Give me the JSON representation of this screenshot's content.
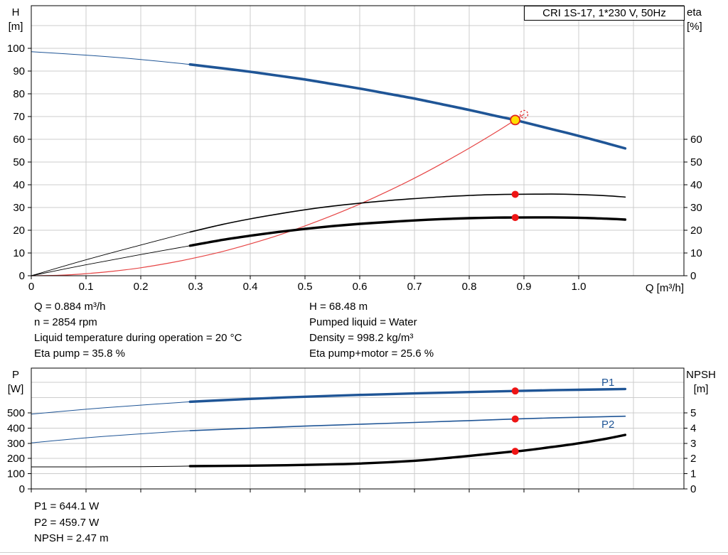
{
  "title_box": "CRI 1S-17, 1*230 V, 50Hz",
  "axes": {
    "top_left_line1": "H",
    "top_left_line2": "[m]",
    "top_right_line1": "eta",
    "top_right_line2": "[%]",
    "x_label": "Q [m³/h]",
    "bottom_left_line1": "P",
    "bottom_left_line2": "[W]",
    "bottom_right_line1": "NPSH",
    "bottom_right_line2": "[m]"
  },
  "series_labels": {
    "p1": "P1",
    "p2": "P2"
  },
  "annotations": {
    "top_left": [
      "Q = 0.884 m³/h",
      "n = 2854 rpm",
      "Liquid temperature during operation = 20 °C",
      "Eta pump = 35.8 %"
    ],
    "top_right": [
      "H = 68.48 m",
      "Pumped liquid = Water",
      "Density = 998.2 kg/m³",
      "Eta pump+motor = 25.6 %"
    ],
    "bottom": [
      "P1 = 644.1 W",
      "P2 = 459.7 W",
      "NPSH = 2.47 m"
    ]
  },
  "colors": {
    "curve_blue": "#1f5596",
    "curve_black": "#000000",
    "curve_red": "#e64545",
    "marker_red": "#ee1515",
    "duty_yellow": "#ffdf00",
    "grid": "#cccccc"
  },
  "chart_data": [
    {
      "type": "line",
      "title": "CRI 1S-17, 1*230 V, 50Hz",
      "xlabel": "Q [m³/h]",
      "ylabel_left": "H [m]",
      "ylabel_right": "eta [%]",
      "xlim": [
        0,
        1.19
      ],
      "ylim_left": [
        0,
        118
      ],
      "ylim_right": [
        0,
        118
      ],
      "x_tick_values": [
        0,
        0.1,
        0.2,
        0.3,
        0.4,
        0.5,
        0.6,
        0.7,
        0.8,
        0.9,
        1.0
      ],
      "x_tick_labels": [
        "0",
        "0.1",
        "0.2",
        "0.3",
        "0.4",
        "0.5",
        "0.6",
        "0.7",
        "0.8",
        "0.9",
        "1.0"
      ],
      "y_ticks_left": [
        0,
        10,
        20,
        30,
        40,
        50,
        60,
        70,
        80,
        90,
        100
      ],
      "y_ticks_right": [
        0,
        10,
        20,
        30,
        40,
        50,
        60
      ],
      "grid_x": [
        0.1,
        0.2,
        0.3,
        0.4,
        0.5,
        0.6,
        0.7,
        0.8,
        0.9,
        1.0,
        1.1
      ],
      "grid_y": [
        10,
        20,
        30,
        40,
        50,
        60,
        70,
        80,
        90,
        100,
        110
      ],
      "show_x_labels": true,
      "series": [
        {
          "name": "h-curve-extrapolated",
          "axis": "left",
          "color": "#1f5596",
          "width": 1,
          "points": [
            [
              0,
              98.5
            ],
            [
              0.1,
              97.0
            ],
            [
              0.2,
              95.1
            ],
            [
              0.29,
              92.9
            ]
          ]
        },
        {
          "name": "h-curve",
          "axis": "left",
          "color": "#1f5596",
          "width": 3.6,
          "points": [
            [
              0.29,
              92.9
            ],
            [
              0.35,
              91.2
            ],
            [
              0.4,
              89.7
            ],
            [
              0.45,
              88.0
            ],
            [
              0.5,
              86.3
            ],
            [
              0.55,
              84.3
            ],
            [
              0.6,
              82.3
            ],
            [
              0.65,
              80.1
            ],
            [
              0.7,
              77.9
            ],
            [
              0.75,
              75.4
            ],
            [
              0.8,
              72.9
            ],
            [
              0.85,
              70.2
            ],
            [
              0.884,
              68.5
            ],
            [
              0.9,
              67.5
            ],
            [
              0.95,
              64.5
            ],
            [
              1.0,
              61.5
            ],
            [
              1.05,
              58.3
            ],
            [
              1.085,
              56.0
            ]
          ]
        },
        {
          "name": "system-curve",
          "axis": "left",
          "color": "#e64545",
          "width": 1.2,
          "points": [
            [
              0,
              0
            ],
            [
              0.05,
              0.2
            ],
            [
              0.1,
              0.9
            ],
            [
              0.15,
              2.0
            ],
            [
              0.2,
              3.5
            ],
            [
              0.25,
              5.5
            ],
            [
              0.3,
              7.9
            ],
            [
              0.35,
              10.7
            ],
            [
              0.4,
              14.0
            ],
            [
              0.45,
              17.7
            ],
            [
              0.5,
              21.9
            ],
            [
              0.55,
              26.5
            ],
            [
              0.6,
              31.5
            ],
            [
              0.65,
              37.0
            ],
            [
              0.7,
              42.9
            ],
            [
              0.75,
              49.3
            ],
            [
              0.8,
              56.1
            ],
            [
              0.85,
              63.3
            ],
            [
              0.884,
              68.5
            ],
            [
              0.9,
              71.0
            ]
          ]
        },
        {
          "name": "eta-pump-extrapolated",
          "axis": "right",
          "color": "#000000",
          "width": 0.9,
          "points": [
            [
              0,
              0
            ],
            [
              0.1,
              7.0
            ],
            [
              0.2,
              13.5
            ],
            [
              0.29,
              19.2
            ]
          ]
        },
        {
          "name": "eta-pump",
          "axis": "right",
          "color": "#000000",
          "width": 1.6,
          "points": [
            [
              0.29,
              19.2
            ],
            [
              0.35,
              22.6
            ],
            [
              0.4,
              25.0
            ],
            [
              0.45,
              27.1
            ],
            [
              0.5,
              29.0
            ],
            [
              0.55,
              30.6
            ],
            [
              0.6,
              31.9
            ],
            [
              0.65,
              33.0
            ],
            [
              0.7,
              33.9
            ],
            [
              0.75,
              34.7
            ],
            [
              0.8,
              35.3
            ],
            [
              0.85,
              35.7
            ],
            [
              0.884,
              35.8
            ],
            [
              0.95,
              35.9
            ],
            [
              1.0,
              35.7
            ],
            [
              1.05,
              35.2
            ],
            [
              1.085,
              34.6
            ]
          ]
        },
        {
          "name": "eta-pump-motor-extrapolated",
          "axis": "right",
          "color": "#000000",
          "width": 0.9,
          "points": [
            [
              0,
              0
            ],
            [
              0.1,
              4.8
            ],
            [
              0.2,
              9.3
            ],
            [
              0.29,
              13.2
            ]
          ]
        },
        {
          "name": "eta-pump-motor",
          "axis": "right",
          "color": "#000000",
          "width": 3.4,
          "points": [
            [
              0.29,
              13.2
            ],
            [
              0.35,
              15.8
            ],
            [
              0.4,
              17.6
            ],
            [
              0.45,
              19.2
            ],
            [
              0.5,
              20.6
            ],
            [
              0.55,
              21.8
            ],
            [
              0.6,
              22.8
            ],
            [
              0.65,
              23.6
            ],
            [
              0.7,
              24.3
            ],
            [
              0.75,
              24.9
            ],
            [
              0.8,
              25.3
            ],
            [
              0.85,
              25.55
            ],
            [
              0.884,
              25.6
            ],
            [
              0.95,
              25.65
            ],
            [
              1.0,
              25.5
            ],
            [
              1.05,
              25.1
            ],
            [
              1.085,
              24.7
            ]
          ]
        }
      ],
      "markers": [
        {
          "name": "duty-point-marker",
          "axis": "left",
          "q": 0.884,
          "v": 68.48,
          "r": 6.5,
          "fill": "#ffdf00",
          "stroke": "#e02020",
          "sw": 1.8
        },
        {
          "name": "requested-duty-marker",
          "axis": "left",
          "q": 0.9,
          "v": 71.0,
          "r": 5.5,
          "fill": "none",
          "stroke": "#e02020",
          "sw": 1.2,
          "dash": "2.5,2.5"
        },
        {
          "name": "eta-pump-duty-dot",
          "axis": "right",
          "q": 0.884,
          "v": 35.8,
          "r": 5,
          "fill": "#ee1515"
        },
        {
          "name": "eta-pump-motor-duty-dot",
          "axis": "right",
          "q": 0.884,
          "v": 25.6,
          "r": 5,
          "fill": "#ee1515"
        }
      ]
    },
    {
      "type": "line",
      "title": "",
      "xlabel": "",
      "ylabel_left": "P [W]",
      "ylabel_right": "NPSH [m]",
      "xlim": [
        0,
        1.19
      ],
      "ylim_left": [
        0,
        795
      ],
      "ylim_right": [
        0,
        7.9
      ],
      "x_tick_values": [
        0,
        0.1,
        0.2,
        0.3,
        0.4,
        0.5,
        0.6,
        0.7,
        0.8,
        0.9,
        1.0
      ],
      "x_tick_labels": [
        "0",
        "0.1",
        "0.2",
        "0.3",
        "0.4",
        "0.5",
        "0.6",
        "0.7",
        "0.8",
        "0.9",
        "1.0"
      ],
      "y_ticks_left": [
        0,
        100,
        200,
        300,
        400,
        500
      ],
      "y_ticks_right": [
        0,
        1,
        2,
        3,
        4,
        5
      ],
      "grid_x": [
        0.1,
        0.2,
        0.3,
        0.4,
        0.5,
        0.6,
        0.7,
        0.8,
        0.9,
        1.0,
        1.1
      ],
      "grid_y": [
        100,
        200,
        300,
        400,
        500,
        600,
        700
      ],
      "show_x_labels": false,
      "series": [
        {
          "name": "p1-extrapolated",
          "axis": "left",
          "color": "#1f5596",
          "width": 1,
          "points": [
            [
              0,
              492
            ],
            [
              0.1,
              524
            ],
            [
              0.2,
              551
            ],
            [
              0.29,
              573
            ]
          ]
        },
        {
          "name": "p1",
          "axis": "left",
          "color": "#1f5596",
          "width": 3.4,
          "points": [
            [
              0.29,
              573
            ],
            [
              0.4,
              592
            ],
            [
              0.5,
              606
            ],
            [
              0.6,
              618
            ],
            [
              0.7,
              628
            ],
            [
              0.8,
              637
            ],
            [
              0.884,
              644.1
            ],
            [
              0.95,
              649
            ],
            [
              1.0,
              652
            ],
            [
              1.085,
              657
            ]
          ]
        },
        {
          "name": "p2-extrapolated",
          "axis": "left",
          "color": "#1f5596",
          "width": 1,
          "points": [
            [
              0,
              303
            ],
            [
              0.1,
              336
            ],
            [
              0.2,
              362
            ],
            [
              0.29,
              383
            ]
          ]
        },
        {
          "name": "p2",
          "axis": "left",
          "color": "#1f5596",
          "width": 1.6,
          "points": [
            [
              0.29,
              383
            ],
            [
              0.4,
              399
            ],
            [
              0.5,
              413
            ],
            [
              0.6,
              425
            ],
            [
              0.7,
              437
            ],
            [
              0.8,
              449
            ],
            [
              0.884,
              459.7
            ],
            [
              0.95,
              467
            ],
            [
              1.0,
              471
            ],
            [
              1.085,
              478
            ]
          ]
        },
        {
          "name": "npsh-extrapolated",
          "axis": "right",
          "color": "#000000",
          "width": 1,
          "points": [
            [
              0,
              1.45
            ],
            [
              0.1,
              1.45
            ],
            [
              0.2,
              1.46
            ],
            [
              0.29,
              1.5
            ]
          ]
        },
        {
          "name": "npsh",
          "axis": "right",
          "color": "#000000",
          "width": 3.4,
          "points": [
            [
              0.29,
              1.5
            ],
            [
              0.4,
              1.53
            ],
            [
              0.5,
              1.58
            ],
            [
              0.6,
              1.67
            ],
            [
              0.7,
              1.85
            ],
            [
              0.75,
              2.0
            ],
            [
              0.8,
              2.17
            ],
            [
              0.85,
              2.35
            ],
            [
              0.884,
              2.47
            ],
            [
              0.9,
              2.52
            ],
            [
              0.95,
              2.75
            ],
            [
              1.0,
              3.0
            ],
            [
              1.05,
              3.3
            ],
            [
              1.085,
              3.55
            ]
          ]
        }
      ],
      "markers": [
        {
          "name": "p1-duty-dot",
          "axis": "left",
          "q": 0.884,
          "v": 644.1,
          "r": 5,
          "fill": "#ee1515"
        },
        {
          "name": "p2-duty-dot",
          "axis": "left",
          "q": 0.884,
          "v": 459.7,
          "r": 5,
          "fill": "#ee1515"
        },
        {
          "name": "npsh-duty-dot",
          "axis": "right",
          "q": 0.884,
          "v": 2.47,
          "r": 5,
          "fill": "#ee1515"
        }
      ]
    }
  ]
}
